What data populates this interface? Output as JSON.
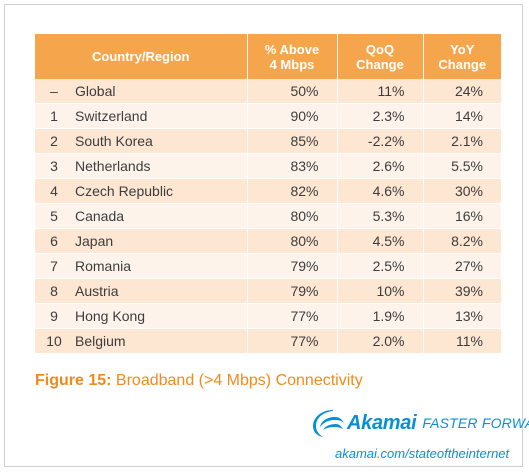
{
  "table": {
    "headers": {
      "country": "Country/Region",
      "above_4mbps": [
        "% Above",
        "4 Mbps"
      ],
      "qoq": [
        "QoQ",
        "Change"
      ],
      "yoy": [
        "YoY",
        "Change"
      ]
    },
    "rows": [
      {
        "rank": "–",
        "country": "Global",
        "above": "50%",
        "qoq": "11%",
        "yoy": "24%"
      },
      {
        "rank": "1",
        "country": "Switzerland",
        "above": "90%",
        "qoq": "2.3%",
        "yoy": "14%"
      },
      {
        "rank": "2",
        "country": "South Korea",
        "above": "85%",
        "qoq": "-2.2%",
        "yoy": "2.1%"
      },
      {
        "rank": "3",
        "country": "Netherlands",
        "above": "83%",
        "qoq": "2.6%",
        "yoy": "5.5%"
      },
      {
        "rank": "4",
        "country": "Czech Republic",
        "above": "82%",
        "qoq": "4.6%",
        "yoy": "30%"
      },
      {
        "rank": "5",
        "country": "Canada",
        "above": "80%",
        "qoq": "5.3%",
        "yoy": "16%"
      },
      {
        "rank": "6",
        "country": "Japan",
        "above": "80%",
        "qoq": "4.5%",
        "yoy": "8.2%"
      },
      {
        "rank": "7",
        "country": "Romania",
        "above": "79%",
        "qoq": "2.5%",
        "yoy": "27%"
      },
      {
        "rank": "8",
        "country": "Austria",
        "above": "79%",
        "qoq": "10%",
        "yoy": "39%"
      },
      {
        "rank": "9",
        "country": "Hong Kong",
        "above": "77%",
        "qoq": "1.9%",
        "yoy": "13%"
      },
      {
        "rank": "10",
        "country": "Belgium",
        "above": "77%",
        "qoq": "2.0%",
        "yoy": "11%"
      }
    ]
  },
  "caption": {
    "figure_label": "Figure 15:",
    "text": "Broadband (>4 Mbps) Connectivity"
  },
  "footer": {
    "logo_icon": "akamai-wave-logo",
    "brand": "Akamai",
    "tagline": "FASTER FORWARD",
    "url": "akamai.com/stateoftheinternet"
  },
  "colors": {
    "header_bg": "#f5a54c",
    "row_odd": "#fde6d2",
    "row_even": "#fef3ea",
    "caption": "#f08a1c",
    "brand": "#0b8fd3"
  }
}
